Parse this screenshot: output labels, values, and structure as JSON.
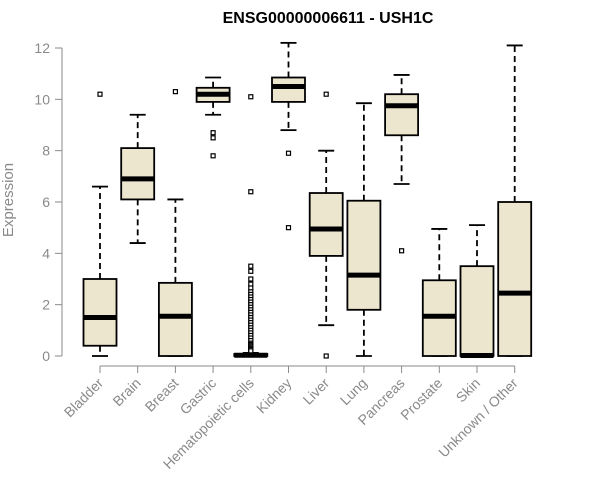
{
  "chart_data": {
    "type": "box",
    "title": "ENSG00000006611 - USH1C",
    "xlabel": "",
    "ylabel": "Expression",
    "ylim": [
      0,
      12
    ],
    "yticks": [
      0,
      2,
      4,
      6,
      8,
      10,
      12
    ],
    "ytick_labels": [
      "0",
      "2",
      "4",
      "6",
      "8",
      "10",
      "12"
    ],
    "categories": [
      "Bladder",
      "Brain",
      "Breast",
      "Gastric",
      "Hematopoietic cells",
      "Kidney",
      "Liver",
      "Lung",
      "Pancreas",
      "Prostate",
      "Skin",
      "Unknown / Other"
    ],
    "box_fill": "#ede6cf",
    "box_stroke": "#000000",
    "axis_color": "#8a8a8a",
    "boxes": [
      {
        "q1": 0.4,
        "median": 1.5,
        "q3": 3.0,
        "whisker_low": 0.0,
        "whisker_high": 6.6,
        "outliers": [
          10.2
        ]
      },
      {
        "q1": 6.1,
        "median": 6.9,
        "q3": 8.1,
        "whisker_low": 4.4,
        "whisker_high": 9.4,
        "outliers": []
      },
      {
        "q1": 0.0,
        "median": 1.55,
        "q3": 2.85,
        "whisker_low": 0.0,
        "whisker_high": 6.1,
        "outliers": [
          10.3
        ]
      },
      {
        "q1": 9.9,
        "median": 10.2,
        "q3": 10.45,
        "whisker_low": 9.4,
        "whisker_high": 10.85,
        "outliers": [
          8.7,
          8.5,
          7.8
        ]
      },
      {
        "q1": 0.0,
        "median": 0.03,
        "q3": 0.08,
        "whisker_low": 0.0,
        "whisker_high": 0.12,
        "outliers": [
          10.1,
          6.4,
          3.5,
          3.3,
          3.0,
          2.8,
          2.65,
          2.5,
          2.4,
          2.3,
          2.2,
          2.1,
          2.0,
          1.9,
          1.8,
          1.7,
          1.6,
          1.5,
          1.4,
          1.3,
          1.2,
          1.1,
          1.0,
          0.9,
          0.8,
          0.7,
          0.6,
          0.5,
          0.45,
          0.4,
          0.35,
          0.3,
          0.25,
          0.2
        ]
      },
      {
        "q1": 9.9,
        "median": 10.5,
        "q3": 10.85,
        "whisker_low": 8.8,
        "whisker_high": 12.2,
        "outliers": [
          7.9,
          5.0
        ]
      },
      {
        "q1": 3.9,
        "median": 4.95,
        "q3": 6.35,
        "whisker_low": 1.2,
        "whisker_high": 8.0,
        "outliers": [
          10.2,
          0.0
        ]
      },
      {
        "q1": 1.8,
        "median": 3.15,
        "q3": 6.05,
        "whisker_low": 0.0,
        "whisker_high": 9.85,
        "outliers": []
      },
      {
        "q1": 8.6,
        "median": 9.75,
        "q3": 10.2,
        "whisker_low": 6.7,
        "whisker_high": 10.95,
        "outliers": [
          4.1
        ]
      },
      {
        "q1": 0.0,
        "median": 1.55,
        "q3": 2.95,
        "whisker_low": 0.0,
        "whisker_high": 4.95,
        "outliers": []
      },
      {
        "q1": 0.0,
        "median": 0.02,
        "q3": 3.5,
        "whisker_low": 0.0,
        "whisker_high": 5.1,
        "outliers": []
      },
      {
        "q1": 0.0,
        "median": 2.45,
        "q3": 6.0,
        "whisker_low": 0.0,
        "whisker_high": 12.1,
        "outliers": []
      }
    ]
  }
}
